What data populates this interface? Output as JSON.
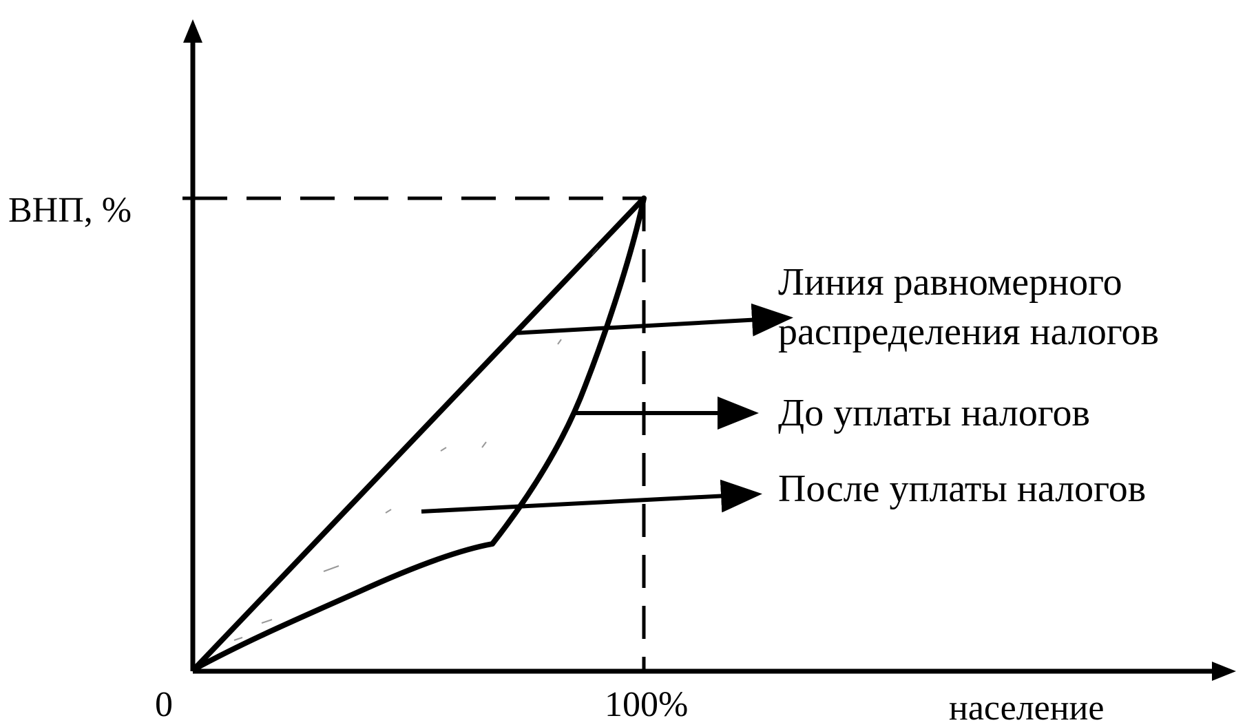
{
  "y_axis_label": "ВНП, %",
  "x_axis_label": "население",
  "origin_label": "0",
  "x_max_label": "100%",
  "legend": {
    "equal_line_label_line1": "Линия равномерного",
    "equal_line_label_line2": "распределения налогов",
    "before_taxes_label": "До уплаты налогов",
    "after_taxes_label": "После уплаты налогов"
  },
  "colors": {
    "ink": "#000000",
    "background": "#ffffff"
  }
}
